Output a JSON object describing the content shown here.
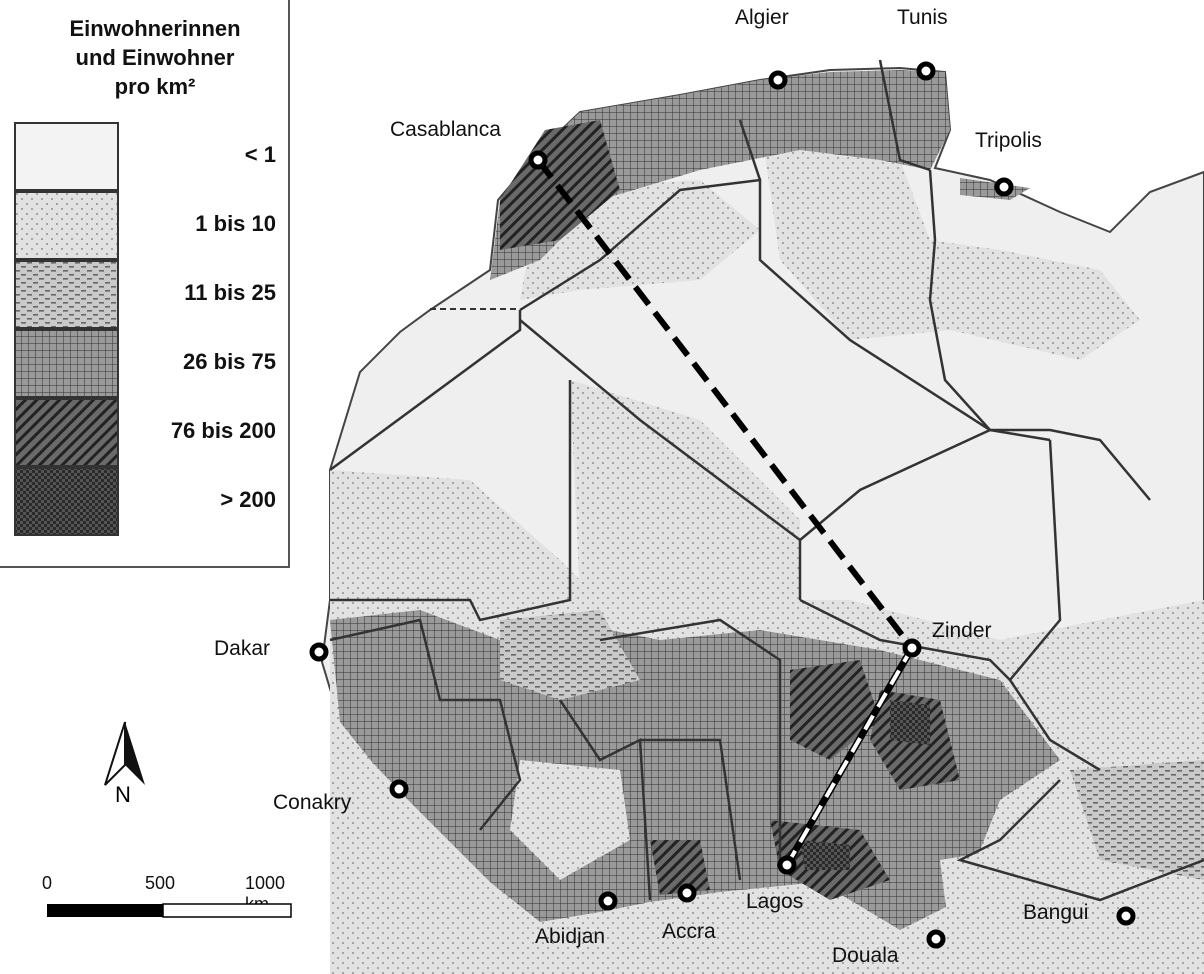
{
  "legend": {
    "title_lines": [
      "Einwohnerinnen",
      "und Einwohner",
      "pro km²"
    ],
    "classes": [
      {
        "label": "< 1",
        "pattern": "plain-light"
      },
      {
        "label": "1 bis 10",
        "pattern": "dots"
      },
      {
        "label": "11 bis 25",
        "pattern": "dashes"
      },
      {
        "label": "26 bis 75",
        "pattern": "grid"
      },
      {
        "label": "76 bis 200",
        "pattern": "diagonal-hatch"
      },
      {
        "label": "> 200",
        "pattern": "dark-checker"
      }
    ]
  },
  "cities": [
    "Algier",
    "Tunis",
    "Casablanca",
    "Tripolis",
    "Zinder",
    "Dakar",
    "Conakry",
    "Lagos",
    "Abidjan",
    "Accra",
    "Douala",
    "Bangui"
  ],
  "routes": [
    {
      "from": "Casablanca",
      "to": "Zinder",
      "style": "black dashed"
    },
    {
      "from": "Zinder",
      "to": "Lagos",
      "style": "black-white dash-dot"
    }
  ],
  "north_arrow": {
    "label": "N"
  },
  "scale_bar": {
    "labels": [
      "0",
      "500",
      "1000 km"
    ]
  },
  "colors": {
    "sea": "#ffffff",
    "land_light": "#efefef",
    "border": "#333333"
  }
}
